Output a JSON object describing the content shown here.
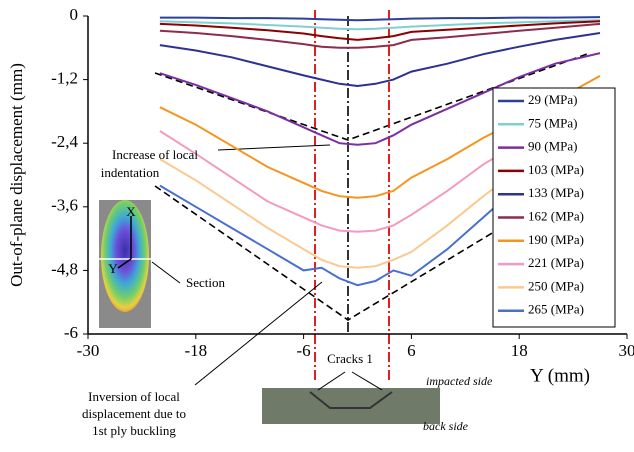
{
  "chart_data": {
    "type": "line",
    "y_label": "Out-of-plane displacement (mm)",
    "x_label": "Y (mm)",
    "xlim": [
      -30,
      30
    ],
    "xticks": [
      -30,
      -18,
      -6,
      6,
      18,
      30
    ],
    "ylim": [
      -6,
      0
    ],
    "yticks": [
      0,
      {
        "value": -1.2,
        "label": "-1,2"
      },
      {
        "value": -2.4,
        "label": "-2,4"
      },
      {
        "value": -3.6,
        "label": "-3,6"
      },
      {
        "value": -4.8,
        "label": "-4,8"
      },
      -6
    ],
    "legend": "right",
    "x": [
      -22,
      -18,
      -14,
      -10,
      -6,
      -4,
      -2,
      0,
      2,
      4,
      6,
      10,
      14,
      18,
      22,
      27
    ],
    "series": [
      {
        "name": "29 (MPa)",
        "color": "#2a3f9e",
        "values": [
          -0.03,
          -0.03,
          -0.04,
          -0.04,
          -0.05,
          -0.06,
          -0.07,
          -0.08,
          -0.07,
          -0.06,
          -0.05,
          -0.04,
          -0.04,
          -0.03,
          -0.03,
          -0.02
        ]
      },
      {
        "name": "75 (MPa)",
        "color": "#7fd0d0",
        "values": [
          -0.1,
          -0.12,
          -0.14,
          -0.17,
          -0.2,
          -0.22,
          -0.24,
          -0.25,
          -0.24,
          -0.22,
          -0.2,
          -0.17,
          -0.14,
          -0.12,
          -0.1,
          -0.08
        ]
      },
      {
        "name": "90 (MPa)",
        "color": "#7b2fa0",
        "values": [
          -1.08,
          -1.3,
          -1.55,
          -1.8,
          -2.1,
          -2.25,
          -2.4,
          -2.43,
          -2.4,
          -2.25,
          -2.05,
          -1.75,
          -1.45,
          -1.15,
          -0.9,
          -0.7
        ]
      },
      {
        "name": "103 (MPa)",
        "color": "#8b0000",
        "values": [
          -0.15,
          -0.18,
          -0.22,
          -0.27,
          -0.33,
          -0.38,
          -0.42,
          -0.45,
          -0.42,
          -0.38,
          -0.3,
          -0.26,
          -0.22,
          -0.18,
          -0.14,
          -0.1
        ]
      },
      {
        "name": "133 (MPa)",
        "color": "#2e3192",
        "values": [
          -0.55,
          -0.65,
          -0.78,
          -0.95,
          -1.12,
          -1.2,
          -1.28,
          -1.32,
          -1.28,
          -1.2,
          -1.05,
          -0.9,
          -0.72,
          -0.58,
          -0.45,
          -0.32
        ]
      },
      {
        "name": "162 (MPa)",
        "color": "#8e2c4c",
        "values": [
          -0.28,
          -0.32,
          -0.38,
          -0.45,
          -0.53,
          -0.58,
          -0.6,
          -0.6,
          -0.58,
          -0.55,
          -0.45,
          -0.4,
          -0.34,
          -0.28,
          -0.22,
          -0.15
        ]
      },
      {
        "name": "190 (MPa)",
        "color": "#f7941d",
        "values": [
          -1.72,
          -2.05,
          -2.45,
          -2.85,
          -3.15,
          -3.3,
          -3.4,
          -3.43,
          -3.4,
          -3.3,
          -3.05,
          -2.7,
          -2.3,
          -1.95,
          -1.6,
          -1.13
        ]
      },
      {
        "name": "221 (MPa)",
        "color": "#f49ac1",
        "values": [
          -2.17,
          -2.6,
          -3.05,
          -3.5,
          -3.8,
          -3.95,
          -4.05,
          -4.07,
          -4.05,
          -3.95,
          -3.75,
          -3.3,
          -2.8,
          -2.4,
          -2.0,
          -1.6
        ]
      },
      {
        "name": "250 (MPa)",
        "color": "#fbc98e",
        "values": [
          -2.7,
          -3.1,
          -3.55,
          -4.0,
          -4.4,
          -4.6,
          -4.72,
          -4.75,
          -4.72,
          -4.6,
          -4.45,
          -3.95,
          -3.4,
          -2.9,
          -2.4,
          -1.9
        ]
      },
      {
        "name": "265 (MPa)",
        "color": "#4a6fd1",
        "values": [
          -3.2,
          -3.6,
          -4.0,
          -4.4,
          -4.8,
          -4.75,
          -4.95,
          -5.08,
          -5.0,
          -4.8,
          -4.9,
          -4.4,
          -3.8,
          -3.2,
          -2.6,
          -2.0
        ]
      }
    ],
    "annotations": [
      "Increase of local",
      "indentation",
      "Section",
      "X",
      "Y",
      "Cracks 1",
      "Inversion of local",
      "displacement due to",
      "1st ply buckling",
      "impacted side",
      "back side"
    ]
  }
}
